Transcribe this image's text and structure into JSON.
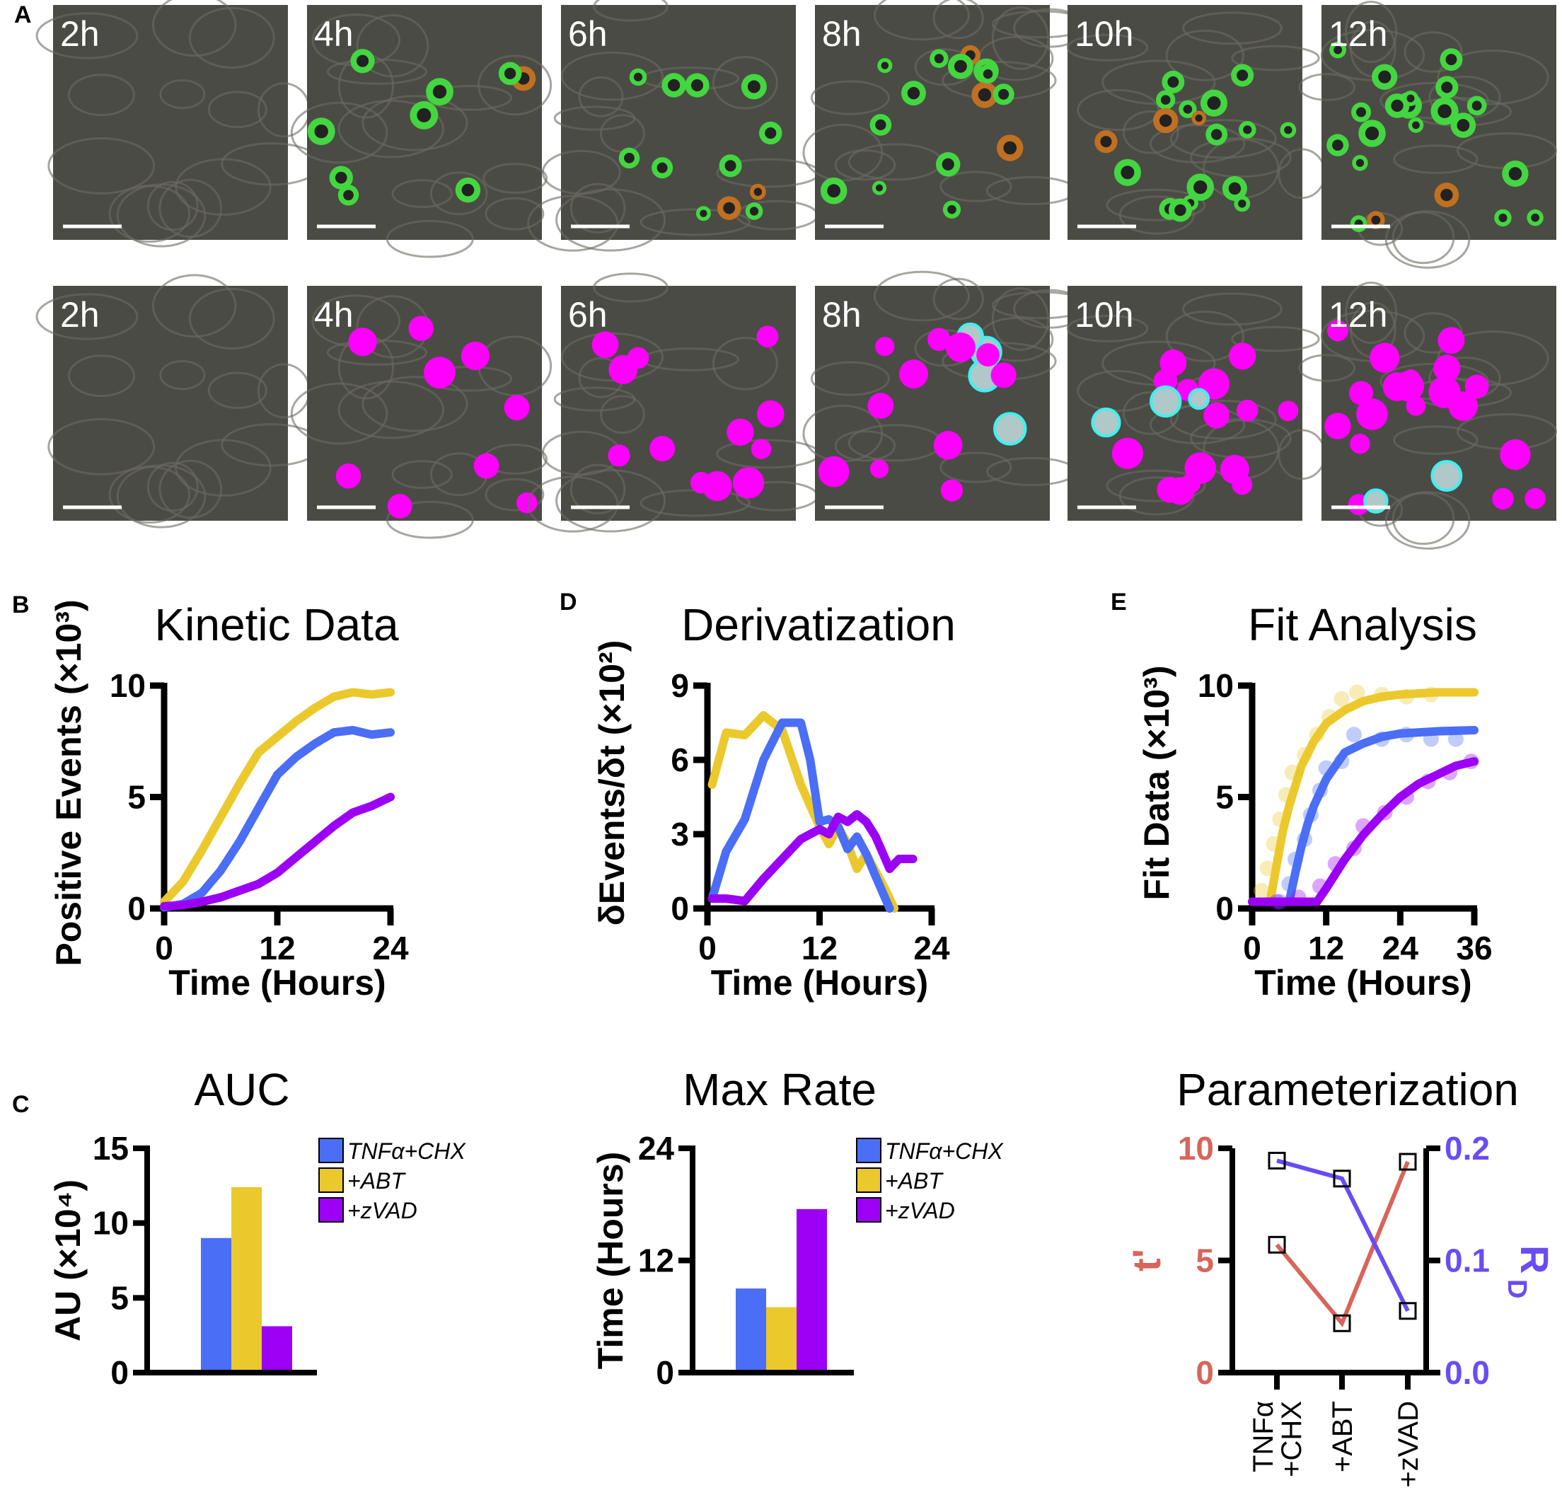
{
  "panel_labels": {
    "A": "A",
    "B": "B",
    "C": "C",
    "D": "D",
    "E": "E"
  },
  "panel_a": {
    "row1_times": [
      "2h",
      "4h",
      "6h",
      "8h",
      "10h",
      "12h"
    ],
    "row2_times": [
      "2h",
      "4h",
      "6h",
      "8h",
      "10h",
      "12h"
    ],
    "row1_overlay_colors": [
      "#3cff3c",
      "#e06020"
    ],
    "row2_overlay_colors": [
      "#ff00ff",
      "#40f0f0"
    ]
  },
  "colors": {
    "TNFa+CHX": "#4a6ef5",
    "+ABT": "#ebc92d",
    "+zVAD": "#9b00f5",
    "t_prime": "#d9645a",
    "R_D": "#6a4cf5"
  },
  "chart_data": [
    {
      "type": "line",
      "title": "Kinetic Data",
      "xlabel": "Time (Hours)",
      "ylabel": "Positive Events (×10³)",
      "xlim": [
        0,
        24
      ],
      "ylim": [
        0,
        10
      ],
      "xticks": [
        "0",
        "12",
        "24"
      ],
      "yticks": [
        "0",
        "5",
        "10"
      ],
      "series": [
        {
          "color": "#ebc92d",
          "x": [
            0,
            2,
            4,
            6,
            8,
            10,
            12,
            14,
            16,
            18,
            20,
            22,
            24
          ],
          "y": [
            0.3,
            1.2,
            2.6,
            4.1,
            5.6,
            7.0,
            7.7,
            8.4,
            9.0,
            9.5,
            9.7,
            9.6,
            9.7
          ]
        },
        {
          "color": "#4a6ef5",
          "x": [
            0,
            2,
            4,
            6,
            8,
            10,
            12,
            14,
            16,
            18,
            20,
            22,
            24
          ],
          "y": [
            0.05,
            0.2,
            0.7,
            1.7,
            3.0,
            4.5,
            6.0,
            6.8,
            7.4,
            7.9,
            8.0,
            7.8,
            7.9
          ]
        },
        {
          "color": "#9b00f5",
          "x": [
            0,
            2,
            4,
            6,
            8,
            10,
            12,
            14,
            16,
            18,
            20,
            22,
            24
          ],
          "y": [
            0.1,
            0.15,
            0.3,
            0.5,
            0.8,
            1.1,
            1.6,
            2.3,
            3.0,
            3.7,
            4.3,
            4.6,
            5.0
          ]
        }
      ]
    },
    {
      "type": "line",
      "title": "Derivatization",
      "xlabel": "Time (Hours)",
      "ylabel": "δEvents/δt (×10²)",
      "xlim": [
        0,
        24
      ],
      "ylim": [
        0,
        9
      ],
      "xticks": [
        "0",
        "12",
        "24"
      ],
      "yticks": [
        "0",
        "3",
        "6",
        "9"
      ],
      "series": [
        {
          "color": "#ebc92d",
          "x": [
            0.5,
            2,
            4,
            6,
            8,
            10,
            12,
            13,
            14,
            15,
            16,
            17,
            18,
            19,
            20
          ],
          "y": [
            5.0,
            7.1,
            7.0,
            7.8,
            7.2,
            5.0,
            3.3,
            2.6,
            3.3,
            2.6,
            1.6,
            2.2,
            1.5,
            0.8,
            0
          ]
        },
        {
          "color": "#4a6ef5",
          "x": [
            0.5,
            2,
            4,
            6,
            8,
            10,
            11,
            12,
            13,
            14,
            15,
            16,
            17,
            18,
            19.5
          ],
          "y": [
            0.4,
            2.3,
            3.6,
            6.0,
            7.5,
            7.5,
            6.0,
            3.5,
            3.6,
            3.3,
            2.4,
            2.9,
            2.2,
            1.3,
            0
          ]
        },
        {
          "color": "#9b00f5",
          "x": [
            0.5,
            2,
            4,
            6,
            8,
            10,
            12,
            13,
            14,
            15,
            16,
            17,
            18,
            19.5,
            20.5,
            22
          ],
          "y": [
            0.4,
            0.4,
            0.3,
            1.2,
            2.0,
            2.8,
            3.2,
            3.0,
            3.7,
            3.5,
            3.8,
            3.5,
            2.9,
            1.6,
            2.0,
            2.0
          ]
        }
      ]
    },
    {
      "type": "line+scatter",
      "title": "Fit Analysis",
      "xlabel": "Time (Hours)",
      "ylabel": "Fit Data (×10³)",
      "xlim": [
        0,
        36
      ],
      "ylim": [
        0,
        10
      ],
      "xticks": [
        "0",
        "12",
        "24",
        "36"
      ],
      "yticks": [
        "0",
        "5",
        "10"
      ],
      "series": [
        {
          "color": "#ebc92d",
          "fit_x": [
            0,
            2.9,
            4,
            5,
            6,
            8,
            10,
            12,
            15,
            18,
            21,
            24,
            30,
            36
          ],
          "fit_y": [
            0.3,
            0.3,
            2.0,
            3.5,
            4.6,
            6.4,
            7.5,
            8.3,
            8.9,
            9.3,
            9.5,
            9.6,
            9.7,
            9.7
          ],
          "points": [
            [
              1.5,
              0.8
            ],
            [
              2.5,
              1.8
            ],
            [
              3.5,
              2.9
            ],
            [
              4.5,
              4.0
            ],
            [
              5.5,
              5.1
            ],
            [
              6.5,
              6.1
            ],
            [
              8.5,
              6.9
            ],
            [
              10.5,
              7.8
            ],
            [
              12.5,
              8.6
            ],
            [
              14.5,
              9.4
            ],
            [
              17,
              9.7
            ],
            [
              21,
              9.6
            ],
            [
              25,
              9.5
            ],
            [
              29,
              9.6
            ]
          ]
        },
        {
          "color": "#4a6ef5",
          "fit_x": [
            0,
            6,
            7,
            8,
            9,
            10,
            12,
            15,
            18,
            21,
            24,
            30,
            36
          ],
          "fit_y": [
            0.3,
            0.3,
            1.6,
            2.8,
            3.8,
            4.6,
            5.8,
            7.0,
            7.4,
            7.7,
            7.85,
            7.95,
            8.0
          ],
          "points": [
            [
              4.5,
              0.3
            ],
            [
              6,
              1.1
            ],
            [
              7,
              2.2
            ],
            [
              8.5,
              3.1
            ],
            [
              9.5,
              4.2
            ],
            [
              11,
              5.3
            ],
            [
              12,
              6.3
            ],
            [
              14.5,
              6.6
            ],
            [
              16.5,
              7.8
            ],
            [
              21,
              7.6
            ],
            [
              25,
              7.8
            ],
            [
              29,
              7.6
            ],
            [
              33,
              7.6
            ]
          ]
        },
        {
          "color": "#9b00f5",
          "fit_x": [
            0,
            10.5,
            12,
            15,
            18,
            21,
            24,
            27,
            30,
            33,
            36
          ],
          "fit_y": [
            0.3,
            0.3,
            0.9,
            2.2,
            3.3,
            4.2,
            5.0,
            5.6,
            6.0,
            6.4,
            6.6
          ],
          "points": [
            [
              4,
              0.3
            ],
            [
              7.5,
              0.5
            ],
            [
              11,
              1.0
            ],
            [
              13.5,
              2.0
            ],
            [
              16.5,
              2.7
            ],
            [
              18,
              3.7
            ],
            [
              21.5,
              4.3
            ],
            [
              25,
              5.0
            ],
            [
              28.5,
              5.7
            ],
            [
              32,
              6.1
            ],
            [
              35.5,
              6.6
            ]
          ]
        }
      ]
    },
    {
      "type": "bar",
      "title": "AUC",
      "ylabel": "AU (×10⁴)",
      "ylim": [
        0,
        15
      ],
      "yticks": [
        "0",
        "5",
        "10",
        "15"
      ],
      "categories": [
        "TNFα+CHX",
        "+ABT",
        "+zVAD"
      ],
      "values": [
        9.0,
        12.4,
        3.1
      ],
      "colors": [
        "#4a6ef5",
        "#ebc92d",
        "#9b00f5"
      ],
      "legend": [
        "TNFα+CHX",
        "+ABT",
        "+zVAD"
      ],
      "legend_position": "top-right"
    },
    {
      "type": "bar",
      "title": "Max Rate",
      "ylabel": "Time (Hours)",
      "ylim": [
        0,
        24
      ],
      "yticks": [
        "0",
        "12",
        "24"
      ],
      "categories": [
        "TNFα+CHX",
        "+ABT",
        "+zVAD"
      ],
      "values": [
        9.0,
        7.0,
        17.5
      ],
      "colors": [
        "#4a6ef5",
        "#ebc92d",
        "#9b00f5"
      ],
      "legend": [
        "TNFα+CHX",
        "+ABT",
        "+zVAD"
      ],
      "legend_position": "top-right"
    },
    {
      "type": "line",
      "title": "Parameterization",
      "categories": [
        "TNFα\n+CHX",
        "+ABT",
        "+zVAD"
      ],
      "category_lines": [
        [
          "TNFα",
          "+CHX"
        ],
        [
          "+ABT"
        ],
        [
          "+zVAD"
        ]
      ],
      "left_axis": {
        "label": "t'",
        "ylim": [
          0,
          10
        ],
        "yticks": [
          "0",
          "5",
          "10"
        ],
        "color": "#d9645a",
        "values": [
          5.7,
          2.2,
          9.4
        ]
      },
      "right_axis": {
        "label": "R",
        "label_subscript": "D",
        "ylim": [
          0,
          0.2
        ],
        "yticks": [
          "0.0",
          "0.1",
          "0.2"
        ],
        "color": "#6a4cf5",
        "values": [
          0.189,
          0.173,
          0.055
        ]
      },
      "marker": "open-square"
    }
  ]
}
